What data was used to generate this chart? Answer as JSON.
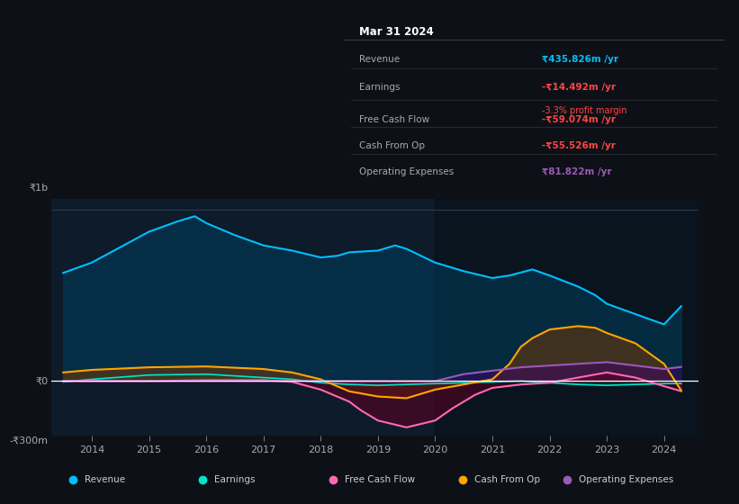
{
  "bg_color": "#0d1117",
  "plot_bg_color": "#0d1b2a",
  "title": "Mar 31 2024",
  "table_rows": [
    {
      "label": "Revenue",
      "value": "₹435.826m /yr",
      "color": "#00bfff",
      "sub": null,
      "sub_color": null
    },
    {
      "label": "Earnings",
      "value": "-₹14.492m /yr",
      "color": "#ff4444",
      "sub": "-3.3% profit margin",
      "sub_color": "#ff4444"
    },
    {
      "label": "Free Cash Flow",
      "value": "-₹59.074m /yr",
      "color": "#ff4444",
      "sub": null,
      "sub_color": null
    },
    {
      "label": "Cash From Op",
      "value": "-₹55.526m /yr",
      "color": "#ff4444",
      "sub": null,
      "sub_color": null
    },
    {
      "label": "Operating Expenses",
      "value": "₹81.822m /yr",
      "color": "#9b59b6",
      "sub": null,
      "sub_color": null
    }
  ],
  "ylabel_top": "₹1b",
  "ylabel_bot": "-₹300m",
  "y0_label": "₹0",
  "x_ticks": [
    2014,
    2015,
    2016,
    2017,
    2018,
    2019,
    2020,
    2021,
    2022,
    2023,
    2024
  ],
  "legend": [
    {
      "label": "Revenue",
      "color": "#00bfff"
    },
    {
      "label": "Earnings",
      "color": "#00e5cc"
    },
    {
      "label": "Free Cash Flow",
      "color": "#ff69b4"
    },
    {
      "label": "Cash From Op",
      "color": "#ffa500"
    },
    {
      "label": "Operating Expenses",
      "color": "#9b59b6"
    }
  ],
  "revenue_x": [
    2013.5,
    2014.0,
    2014.5,
    2015.0,
    2015.5,
    2015.8,
    2016.0,
    2016.5,
    2017.0,
    2017.5,
    2018.0,
    2018.3,
    2018.5,
    2019.0,
    2019.3,
    2019.5,
    2020.0,
    2020.5,
    2021.0,
    2021.3,
    2021.7,
    2022.0,
    2022.5,
    2022.8,
    2023.0,
    2023.5,
    2024.0,
    2024.3
  ],
  "revenue_y": [
    630,
    690,
    780,
    870,
    930,
    960,
    920,
    850,
    790,
    760,
    720,
    730,
    750,
    760,
    790,
    770,
    690,
    640,
    600,
    615,
    650,
    615,
    550,
    500,
    450,
    390,
    330,
    436
  ],
  "earnings_x": [
    2013.5,
    2014.0,
    2015.0,
    2016.0,
    2017.0,
    2017.5,
    2018.0,
    2018.5,
    2019.0,
    2019.5,
    2020.0,
    2020.5,
    2021.0,
    2021.5,
    2022.0,
    2022.5,
    2023.0,
    2023.5,
    2024.0,
    2024.3
  ],
  "earnings_y": [
    -5,
    10,
    35,
    40,
    20,
    10,
    -10,
    -20,
    -25,
    -20,
    -15,
    -10,
    -5,
    0,
    -10,
    -20,
    -25,
    -20,
    -15,
    -14.5
  ],
  "fcf_x": [
    2013.5,
    2014.0,
    2015.0,
    2016.0,
    2017.0,
    2017.5,
    2018.0,
    2018.5,
    2018.7,
    2019.0,
    2019.5,
    2020.0,
    2020.3,
    2020.7,
    2021.0,
    2021.5,
    2022.0,
    2022.5,
    2023.0,
    2023.5,
    2024.0,
    2024.3
  ],
  "fcf_y": [
    0,
    0,
    0,
    5,
    5,
    -5,
    -50,
    -120,
    -170,
    -230,
    -270,
    -230,
    -160,
    -80,
    -40,
    -20,
    -10,
    20,
    50,
    20,
    -30,
    -59
  ],
  "cop_x": [
    2013.5,
    2014.0,
    2015.0,
    2016.0,
    2017.0,
    2017.5,
    2018.0,
    2018.5,
    2019.0,
    2019.5,
    2020.0,
    2020.5,
    2021.0,
    2021.3,
    2021.5,
    2021.7,
    2022.0,
    2022.5,
    2022.8,
    2023.0,
    2023.5,
    2024.0,
    2024.3
  ],
  "cop_y": [
    50,
    65,
    80,
    85,
    70,
    50,
    10,
    -60,
    -90,
    -100,
    -50,
    -20,
    10,
    100,
    200,
    250,
    300,
    320,
    310,
    280,
    220,
    100,
    -55
  ],
  "opex_x": [
    2013.5,
    2014.0,
    2015.0,
    2016.0,
    2017.0,
    2018.0,
    2019.0,
    2019.5,
    2020.0,
    2020.5,
    2021.0,
    2021.5,
    2022.0,
    2022.5,
    2023.0,
    2023.5,
    2024.0,
    2024.3
  ],
  "opex_y": [
    0,
    0,
    0,
    0,
    0,
    0,
    0,
    0,
    0,
    40,
    60,
    80,
    90,
    100,
    110,
    90,
    70,
    82
  ]
}
